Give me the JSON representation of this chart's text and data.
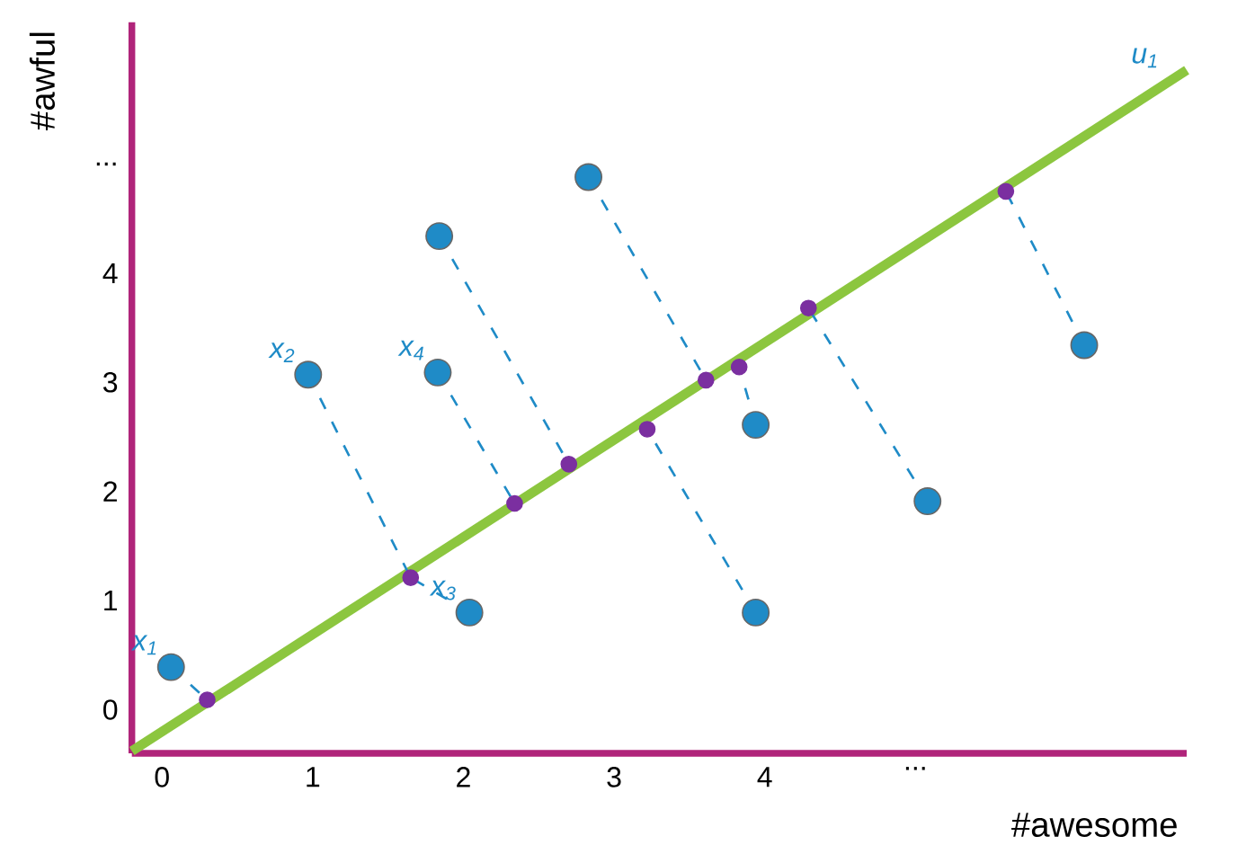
{
  "chart_data": {
    "type": "scatter",
    "xlabel": "#awesome",
    "ylabel": "#awful",
    "xlim": [
      -0.2,
      6.8
    ],
    "ylim": [
      -0.4,
      6.3
    ],
    "xticks": [
      0,
      1,
      2,
      3,
      4,
      {
        "value": 5,
        "label": "..."
      }
    ],
    "yticks": [
      0,
      1,
      2,
      3,
      4,
      {
        "value": 5,
        "label": "..."
      }
    ],
    "grid": false,
    "series": [
      {
        "type": "line",
        "color": "#8cc63f",
        "line_style": "solid",
        "marker": "none",
        "x": [
          -0.2,
          6.8
        ],
        "values": [
          -0.38,
          5.86
        ]
      },
      {
        "type": "line",
        "color": "#1f8bc7",
        "line_style": "dashed",
        "marker": "none",
        "x": [
          0.06,
          0.3
        ],
        "values": [
          0.39,
          0.09
        ]
      },
      {
        "type": "line",
        "color": "#1f8bc7",
        "line_style": "dashed",
        "marker": "none",
        "x": [
          0.97,
          1.65
        ],
        "values": [
          3.07,
          1.21
        ]
      },
      {
        "type": "line",
        "color": "#1f8bc7",
        "line_style": "dashed",
        "marker": "none",
        "x": [
          2.04,
          1.65
        ],
        "values": [
          0.89,
          1.21
        ]
      },
      {
        "type": "line",
        "color": "#1f8bc7",
        "line_style": "dashed",
        "marker": "none",
        "x": [
          1.83,
          2.34
        ],
        "values": [
          3.09,
          1.89
        ]
      },
      {
        "type": "line",
        "color": "#1f8bc7",
        "line_style": "dashed",
        "marker": "none",
        "x": [
          1.84,
          2.7
        ],
        "values": [
          4.34,
          2.25
        ]
      },
      {
        "type": "line",
        "color": "#1f8bc7",
        "line_style": "dashed",
        "marker": "none",
        "x": [
          2.83,
          3.61
        ],
        "values": [
          4.88,
          3.02
        ]
      },
      {
        "type": "line",
        "color": "#1f8bc7",
        "line_style": "dashed",
        "marker": "none",
        "x": [
          3.94,
          3.22
        ],
        "values": [
          0.89,
          2.57
        ]
      },
      {
        "type": "line",
        "color": "#1f8bc7",
        "line_style": "dashed",
        "marker": "none",
        "x": [
          3.94,
          3.83
        ],
        "values": [
          2.61,
          3.14
        ]
      },
      {
        "type": "line",
        "color": "#1f8bc7",
        "line_style": "dashed",
        "marker": "none",
        "x": [
          5.08,
          4.29
        ],
        "values": [
          1.91,
          3.68
        ]
      },
      {
        "type": "line",
        "color": "#1f8bc7",
        "line_style": "dashed",
        "marker": "none",
        "x": [
          6.12,
          5.6
        ],
        "values": [
          3.34,
          4.75
        ]
      },
      {
        "color": "#1f8bc7",
        "marker": "circle",
        "x": [
          0.06,
          0.97,
          1.84,
          1.83,
          2.04,
          2.83,
          3.94,
          3.94,
          5.08,
          6.12
        ],
        "values": [
          0.39,
          3.07,
          4.34,
          3.09,
          0.89,
          4.88,
          2.61,
          0.89,
          1.91,
          3.34
        ]
      },
      {
        "color": "#7b2fa0",
        "marker": "circle",
        "x": [
          0.3,
          1.65,
          2.34,
          2.7,
          3.22,
          3.61,
          3.83,
          4.29,
          5.6
        ],
        "values": [
          0.09,
          1.21,
          1.89,
          2.25,
          2.57,
          3.02,
          3.14,
          3.68,
          4.75
        ]
      }
    ],
    "annotations": [
      {
        "text": "x$_{1}$",
        "x": 0.06,
        "y": 0.39
      },
      {
        "text": "x$_{2}$",
        "x": 0.97,
        "y": 3.07
      },
      {
        "text": "x$_{4}$",
        "x": 1.83,
        "y": 3.09
      },
      {
        "text": "x$_{3}$",
        "x": 2.04,
        "y": 0.89
      },
      {
        "text": "u$_{1}$",
        "x": 6.7,
        "y": 5.77
      }
    ]
  }
}
